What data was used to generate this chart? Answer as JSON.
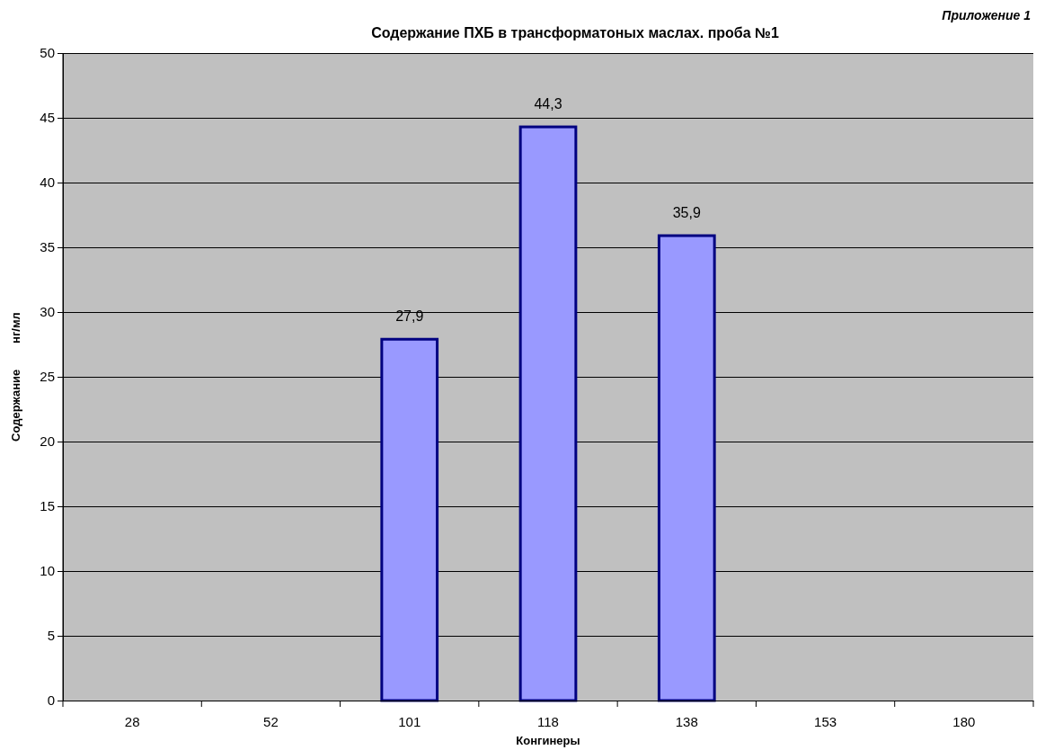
{
  "chart_data": {
    "type": "bar",
    "title": "Содержание ПХБ в трансформатоных маслах. проба №1",
    "annotations": [
      "Приложение 1"
    ],
    "xlabel": "Конгинеры",
    "ylabel": "Содержание        нг/мл",
    "categories": [
      "28",
      "52",
      "101",
      "118",
      "138",
      "153",
      "180"
    ],
    "values": [
      null,
      null,
      27.9,
      44.3,
      35.9,
      null,
      null
    ],
    "value_labels": [
      null,
      null,
      "27,9",
      "44,3",
      "35,9",
      null,
      null
    ],
    "color": "#9999ff",
    "ylim": [
      0,
      50
    ],
    "yticks": [
      0,
      5,
      10,
      15,
      20,
      25,
      30,
      35,
      40,
      45,
      50
    ],
    "grid": "y"
  }
}
